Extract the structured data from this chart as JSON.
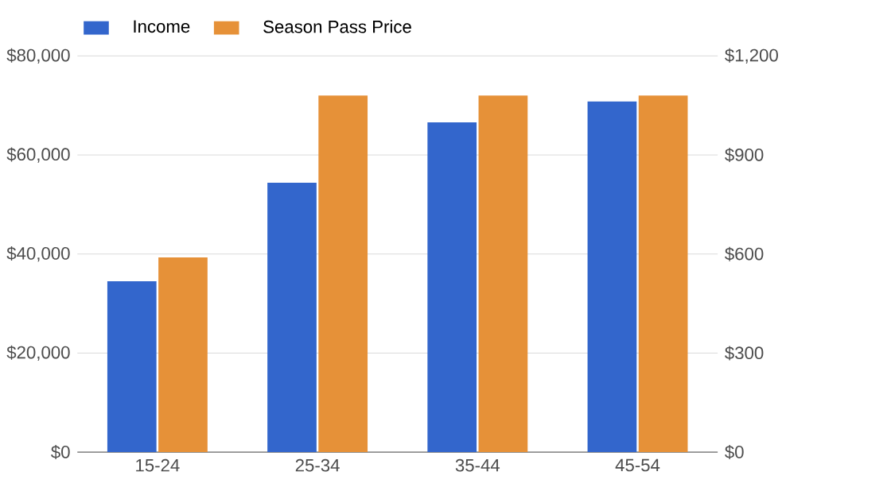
{
  "chart_data": {
    "type": "bar",
    "categories": [
      "15-24",
      "25-34",
      "35-44",
      "45-54"
    ],
    "series": [
      {
        "name": "Income",
        "color": "#3366cc",
        "values": [
          34500,
          54400,
          66600,
          70800
        ]
      },
      {
        "name": "Season Pass Price",
        "color": "#e69138",
        "values": [
          590,
          1080,
          1080,
          1080
        ],
        "axis": "y2"
      }
    ],
    "ylim": [
      0,
      80000
    ],
    "yticks": [
      {
        "value": 0,
        "label": "$0"
      },
      {
        "value": 20000,
        "label": "$20,000"
      },
      {
        "value": 40000,
        "label": "$40,000"
      },
      {
        "value": 60000,
        "label": "$60,000"
      },
      {
        "value": 80000,
        "label": "$80,000"
      }
    ],
    "y2lim": [
      0,
      1200
    ],
    "y2ticks": [
      {
        "value": 0,
        "label": "$0"
      },
      {
        "value": 300,
        "label": "$300"
      },
      {
        "value": 600,
        "label": "$600"
      },
      {
        "value": 900,
        "label": "$900"
      },
      {
        "value": 1200,
        "label": "$1,200"
      }
    ],
    "grid": "y",
    "legend": "top left"
  }
}
